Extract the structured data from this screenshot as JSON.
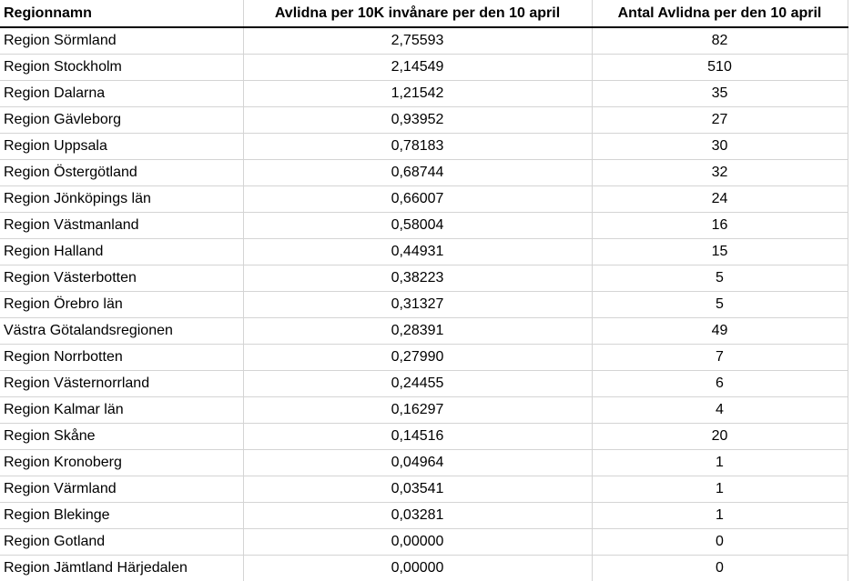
{
  "table": {
    "columns": [
      {
        "label": "Regionnamn",
        "align": "left"
      },
      {
        "label": "Avlidna per 10K invånare per den 10 april",
        "align": "center"
      },
      {
        "label": "Antal Avlidna per den 10 april",
        "align": "center"
      }
    ],
    "rows": [
      [
        "Region Sörmland",
        "2,75593",
        "82"
      ],
      [
        "Region Stockholm",
        "2,14549",
        "510"
      ],
      [
        "Region Dalarna",
        "1,21542",
        "35"
      ],
      [
        "Region Gävleborg",
        "0,93952",
        "27"
      ],
      [
        "Region Uppsala",
        "0,78183",
        "30"
      ],
      [
        "Region Östergötland",
        "0,68744",
        "32"
      ],
      [
        "Region Jönköpings län",
        "0,66007",
        "24"
      ],
      [
        "Region Västmanland",
        "0,58004",
        "16"
      ],
      [
        "Region Halland",
        "0,44931",
        "15"
      ],
      [
        "Region Västerbotten",
        "0,38223",
        "5"
      ],
      [
        "Region Örebro län",
        "0,31327",
        "5"
      ],
      [
        "Västra Götalandsregionen",
        "0,28391",
        "49"
      ],
      [
        "Region Norrbotten",
        "0,27990",
        "7"
      ],
      [
        "Region Västernorrland",
        "0,24455",
        "6"
      ],
      [
        "Region Kalmar län",
        "0,16297",
        "4"
      ],
      [
        "Region Skåne",
        "0,14516",
        "20"
      ],
      [
        "Region Kronoberg",
        "0,04964",
        "1"
      ],
      [
        "Region Värmland",
        "0,03541",
        "1"
      ],
      [
        "Region Blekinge",
        "0,03281",
        "1"
      ],
      [
        "Region Gotland",
        "0,00000",
        "0"
      ],
      [
        "Region Jämtland Härjedalen",
        "0,00000",
        "0"
      ]
    ]
  },
  "colors": {
    "gridline": "#d4d4d4",
    "header_border": "#000000",
    "text": "#000000",
    "background": "#ffffff"
  },
  "chart_data": {
    "type": "table",
    "title": "",
    "columns": [
      "Regionnamn",
      "Avlidna per 10K invånare per den 10 april",
      "Antal Avlidna per den 10 april"
    ],
    "categories": [
      "Region Sörmland",
      "Region Stockholm",
      "Region Dalarna",
      "Region Gävleborg",
      "Region Uppsala",
      "Region Östergötland",
      "Region Jönköpings län",
      "Region Västmanland",
      "Region Halland",
      "Region Västerbotten",
      "Region Örebro län",
      "Västra Götalandsregionen",
      "Region Norrbotten",
      "Region Västernorrland",
      "Region Kalmar län",
      "Region Skåne",
      "Region Kronoberg",
      "Region Värmland",
      "Region Blekinge",
      "Region Gotland",
      "Region Jämtland Härjedalen"
    ],
    "series": [
      {
        "name": "Avlidna per 10K invånare per den 10 april",
        "values": [
          2.75593,
          2.14549,
          1.21542,
          0.93952,
          0.78183,
          0.68744,
          0.66007,
          0.58004,
          0.44931,
          0.38223,
          0.31327,
          0.28391,
          0.2799,
          0.24455,
          0.16297,
          0.14516,
          0.04964,
          0.03541,
          0.03281,
          0.0,
          0.0
        ]
      },
      {
        "name": "Antal Avlidna per den 10 april",
        "values": [
          82,
          510,
          35,
          27,
          30,
          32,
          24,
          16,
          15,
          5,
          5,
          49,
          7,
          6,
          4,
          20,
          1,
          1,
          1,
          0,
          0
        ]
      }
    ]
  }
}
